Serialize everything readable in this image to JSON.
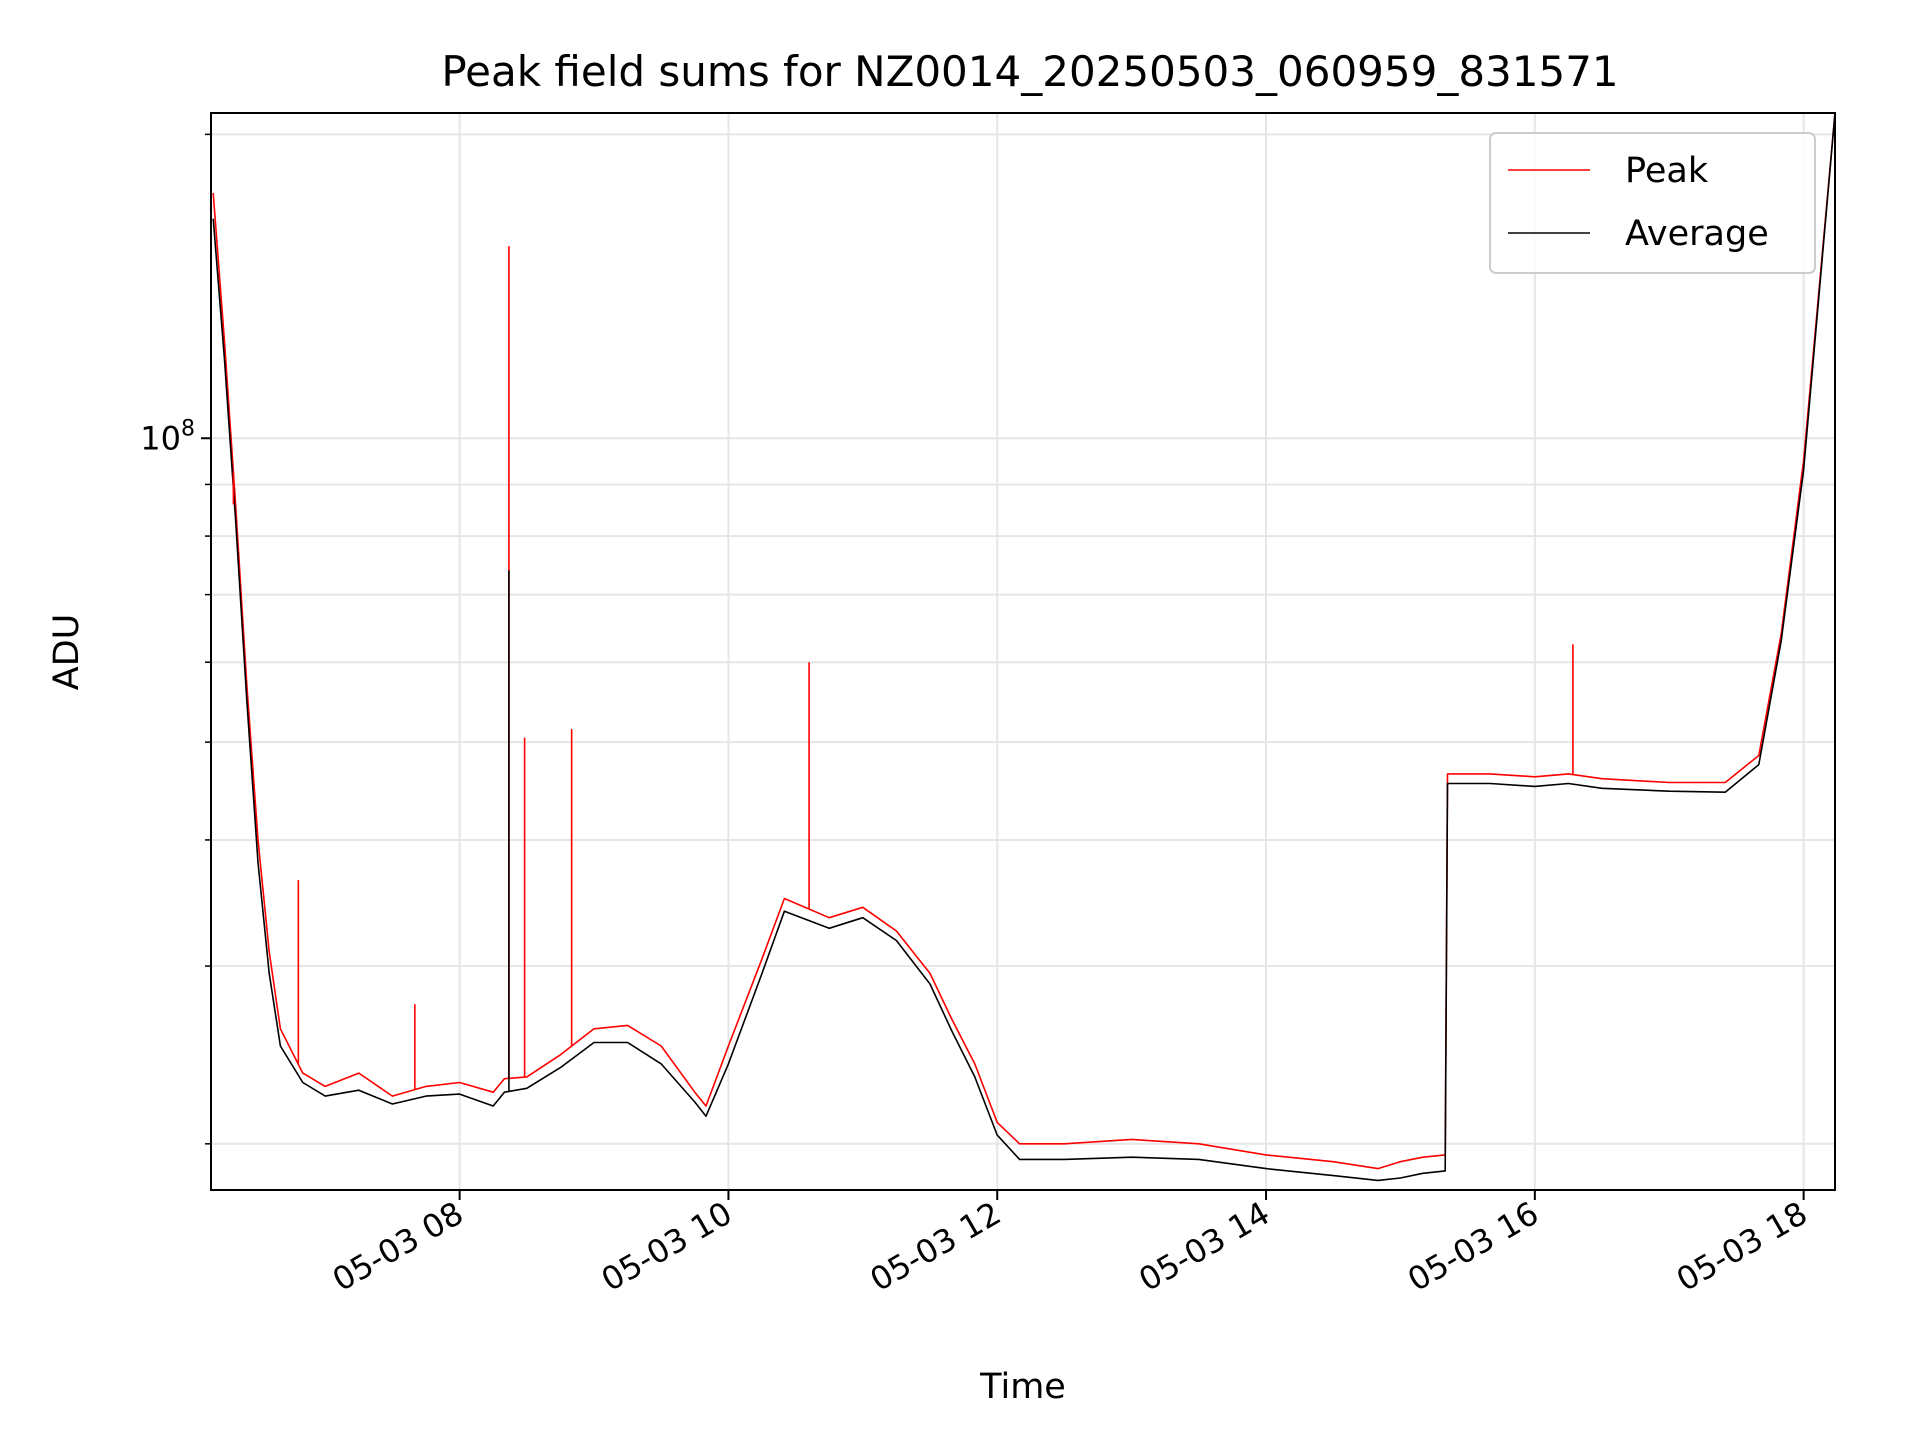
{
  "chart_data": {
    "type": "line",
    "title": "Peak field sums for NZ0014_20250503_060959_831571",
    "xlabel": "Time",
    "ylabel": "ADU",
    "xlim": [
      "05-03 06:09",
      "05-03 18:14"
    ],
    "xticks": [
      "05-03 08",
      "05-03 10",
      "05-03 12",
      "05-03 14",
      "05-03 16",
      "05-03 18"
    ],
    "yscale": "log",
    "ylim": [
      18000000,
      210000000
    ],
    "yticks": [
      {
        "value": 100000000,
        "label": "10^8"
      }
    ],
    "yminor_ticks": [
      20000000,
      30000000,
      40000000,
      50000000,
      60000000,
      70000000,
      80000000,
      90000000,
      200000000
    ],
    "grid": true,
    "legend_position": "upper right",
    "colors": {
      "peak": "#ff0000",
      "average": "#000000",
      "grid": "#e6e6e6"
    },
    "series": [
      {
        "name": "Peak",
        "x": [
          "06:10",
          "06:15",
          "06:20",
          "06:25",
          "06:30",
          "06:35",
          "06:40",
          "06:50",
          "07:00",
          "07:15",
          "07:30",
          "07:45",
          "08:00",
          "08:15",
          "08:20",
          "08:30",
          "08:45",
          "09:00",
          "09:15",
          "09:30",
          "09:45",
          "09:50",
          "10:00",
          "10:15",
          "10:25",
          "10:45",
          "11:00",
          "11:15",
          "11:30",
          "11:40",
          "11:50",
          "12:00",
          "12:10",
          "12:30",
          "13:00",
          "13:30",
          "14:00",
          "14:30",
          "14:50",
          "15:00",
          "15:10",
          "15:20",
          "15:21",
          "15:40",
          "16:00",
          "16:15",
          "16:30",
          "17:00",
          "17:25",
          "17:40",
          "17:50",
          "18:00",
          "18:14"
        ],
        "y": [
          175000000,
          125000000,
          86000000,
          57000000,
          40000000,
          31000000,
          26000000,
          23500000,
          22800000,
          23500000,
          22300000,
          22800000,
          23000000,
          22500000,
          23200000,
          23300000,
          24500000,
          26000000,
          26200000,
          25000000,
          22500000,
          21800000,
          25000000,
          30500000,
          35000000,
          33500000,
          34300000,
          32500000,
          29500000,
          26500000,
          24000000,
          21000000,
          20000000,
          20000000,
          20200000,
          20000000,
          19500000,
          19200000,
          18900000,
          19200000,
          19400000,
          19500000,
          46500000,
          46500000,
          46200000,
          46500000,
          46000000,
          45600000,
          45600000,
          48500000,
          64000000,
          95000000,
          210000000
        ]
      },
      {
        "name": "Average",
        "x": [
          "06:10",
          "06:15",
          "06:20",
          "06:25",
          "06:30",
          "06:35",
          "06:40",
          "06:50",
          "07:00",
          "07:15",
          "07:30",
          "07:45",
          "08:00",
          "08:15",
          "08:20",
          "08:30",
          "08:45",
          "09:00",
          "09:15",
          "09:30",
          "09:45",
          "09:50",
          "10:00",
          "10:15",
          "10:25",
          "10:45",
          "11:00",
          "11:15",
          "11:30",
          "11:40",
          "11:50",
          "12:00",
          "12:10",
          "12:30",
          "13:00",
          "13:30",
          "14:00",
          "14:30",
          "14:50",
          "15:00",
          "15:10",
          "15:20",
          "15:21",
          "15:40",
          "16:00",
          "16:15",
          "16:30",
          "17:00",
          "17:25",
          "17:40",
          "17:50",
          "18:00",
          "18:14"
        ],
        "y": [
          165000000,
          120000000,
          83000000,
          55000000,
          38000000,
          29500000,
          25000000,
          23000000,
          22300000,
          22600000,
          21900000,
          22300000,
          22400000,
          21800000,
          22500000,
          22700000,
          23800000,
          25200000,
          25200000,
          24000000,
          22000000,
          21300000,
          24000000,
          29500000,
          34000000,
          32700000,
          33500000,
          31800000,
          28800000,
          25800000,
          23300000,
          20400000,
          19300000,
          19300000,
          19400000,
          19300000,
          18900000,
          18600000,
          18400000,
          18500000,
          18700000,
          18800000,
          45500000,
          45500000,
          45200000,
          45500000,
          45000000,
          44700000,
          44600000,
          47500000,
          63000000,
          93000000,
          210000000
        ]
      }
    ],
    "spikes": [
      {
        "series": "Peak",
        "x": "06:19",
        "y": 86000000
      },
      {
        "series": "Peak",
        "x": "06:48",
        "y": 36500000
      },
      {
        "series": "Peak",
        "x": "07:40",
        "y": 27500000
      },
      {
        "series": "Peak",
        "x": "08:22",
        "y": 155000000
      },
      {
        "series": "Average",
        "x": "08:22",
        "y": 74000000
      },
      {
        "series": "Peak",
        "x": "08:29",
        "y": 50500000
      },
      {
        "series": "Peak",
        "x": "08:50",
        "y": 51500000
      },
      {
        "series": "Peak",
        "x": "10:36",
        "y": 60000000
      },
      {
        "series": "Peak",
        "x": "16:17",
        "y": 62500000
      }
    ]
  }
}
